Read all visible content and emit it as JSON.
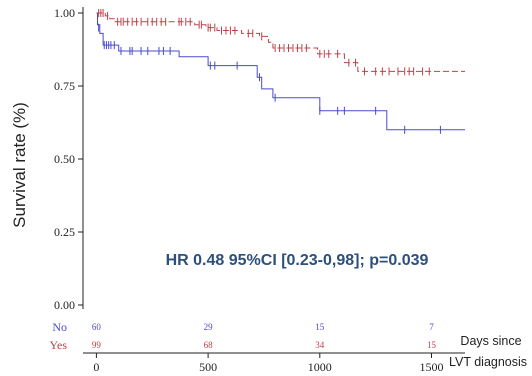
{
  "chart_data": {
    "type": "line",
    "subtype": "kaplan-meier",
    "title": "",
    "ylabel": "Survival rate (%)",
    "xlabel_lines": [
      "Days since",
      "LVT diagnosis"
    ],
    "xlim": [
      -60,
      1650
    ],
    "ylim": [
      0,
      1.02
    ],
    "xticks": [
      0,
      500,
      1000,
      1500
    ],
    "xtick_labels": [
      "0",
      "500",
      "1000",
      "1500"
    ],
    "yticks": [
      0,
      0.25,
      0.5,
      0.75,
      1.0
    ],
    "ytick_labels": [
      "0.00",
      "0.25",
      "0.50",
      "0.75",
      "1.00"
    ],
    "grid": false,
    "annotation": "HR 0.48 95%CI [0.23-0,98]; p=0.039",
    "colors": {
      "no": "#4a4ad0",
      "yes": "#c0404a",
      "annotation": "#2c4f7c"
    },
    "series": [
      {
        "key": "no",
        "line_style": "solid",
        "steps": [
          [
            0,
            1.0
          ],
          [
            5,
            0.96
          ],
          [
            15,
            0.93
          ],
          [
            30,
            0.89
          ],
          [
            100,
            0.87
          ],
          [
            370,
            0.85
          ],
          [
            500,
            0.82
          ],
          [
            720,
            0.78
          ],
          [
            740,
            0.74
          ],
          [
            790,
            0.71
          ],
          [
            1000,
            0.665
          ],
          [
            1120,
            0.665
          ],
          [
            1300,
            0.6
          ],
          [
            1650,
            0.6
          ]
        ],
        "censors": [
          [
            10,
            0.95
          ],
          [
            35,
            0.89
          ],
          [
            45,
            0.89
          ],
          [
            55,
            0.89
          ],
          [
            65,
            0.89
          ],
          [
            80,
            0.89
          ],
          [
            110,
            0.87
          ],
          [
            150,
            0.87
          ],
          [
            160,
            0.87
          ],
          [
            200,
            0.87
          ],
          [
            230,
            0.87
          ],
          [
            280,
            0.87
          ],
          [
            300,
            0.87
          ],
          [
            330,
            0.87
          ],
          [
            510,
            0.82
          ],
          [
            530,
            0.82
          ],
          [
            630,
            0.82
          ],
          [
            730,
            0.78
          ],
          [
            800,
            0.71
          ],
          [
            1000,
            0.665
          ],
          [
            1080,
            0.665
          ],
          [
            1110,
            0.665
          ],
          [
            1250,
            0.665
          ],
          [
            1380,
            0.6
          ],
          [
            1540,
            0.6
          ]
        ]
      },
      {
        "key": "yes",
        "line_style": "dashed",
        "steps": [
          [
            0,
            1.0
          ],
          [
            40,
            0.99
          ],
          [
            60,
            0.98
          ],
          [
            80,
            0.97
          ],
          [
            440,
            0.96
          ],
          [
            490,
            0.95
          ],
          [
            540,
            0.94
          ],
          [
            650,
            0.93
          ],
          [
            730,
            0.92
          ],
          [
            770,
            0.9
          ],
          [
            790,
            0.88
          ],
          [
            990,
            0.86
          ],
          [
            1110,
            0.83
          ],
          [
            1170,
            0.8
          ],
          [
            1650,
            0.8
          ]
        ],
        "censors": [
          [
            10,
            1.0
          ],
          [
            20,
            1.0
          ],
          [
            30,
            1.0
          ],
          [
            50,
            0.99
          ],
          [
            95,
            0.97
          ],
          [
            110,
            0.97
          ],
          [
            120,
            0.97
          ],
          [
            140,
            0.97
          ],
          [
            160,
            0.97
          ],
          [
            180,
            0.97
          ],
          [
            200,
            0.97
          ],
          [
            230,
            0.97
          ],
          [
            250,
            0.97
          ],
          [
            270,
            0.97
          ],
          [
            290,
            0.97
          ],
          [
            310,
            0.97
          ],
          [
            370,
            0.97
          ],
          [
            380,
            0.97
          ],
          [
            400,
            0.97
          ],
          [
            420,
            0.97
          ],
          [
            460,
            0.96
          ],
          [
            470,
            0.96
          ],
          [
            500,
            0.95
          ],
          [
            510,
            0.95
          ],
          [
            530,
            0.95
          ],
          [
            560,
            0.94
          ],
          [
            580,
            0.94
          ],
          [
            600,
            0.94
          ],
          [
            620,
            0.94
          ],
          [
            680,
            0.93
          ],
          [
            700,
            0.93
          ],
          [
            740,
            0.92
          ],
          [
            800,
            0.88
          ],
          [
            820,
            0.88
          ],
          [
            840,
            0.88
          ],
          [
            860,
            0.88
          ],
          [
            880,
            0.88
          ],
          [
            900,
            0.88
          ],
          [
            920,
            0.88
          ],
          [
            940,
            0.88
          ],
          [
            1000,
            0.86
          ],
          [
            1020,
            0.86
          ],
          [
            1040,
            0.86
          ],
          [
            1080,
            0.86
          ],
          [
            1130,
            0.83
          ],
          [
            1160,
            0.83
          ],
          [
            1200,
            0.8
          ],
          [
            1250,
            0.8
          ],
          [
            1280,
            0.8
          ],
          [
            1310,
            0.8
          ],
          [
            1350,
            0.8
          ],
          [
            1380,
            0.8
          ],
          [
            1400,
            0.8
          ],
          [
            1420,
            0.8
          ],
          [
            1460,
            0.8
          ],
          [
            1490,
            0.8
          ]
        ]
      }
    ],
    "risk_table": {
      "times": [
        0,
        500,
        1000,
        1500
      ],
      "rows": [
        {
          "key": "no",
          "label": "No",
          "counts": [
            "60",
            "29",
            "15",
            "7"
          ]
        },
        {
          "key": "yes",
          "label": "Yes",
          "counts": [
            "99",
            "68",
            "34",
            "15"
          ]
        }
      ]
    }
  }
}
